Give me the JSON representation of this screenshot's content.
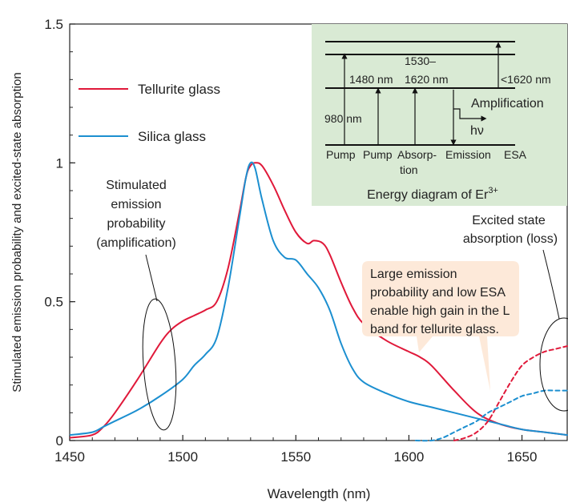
{
  "chart_data": {
    "type": "line",
    "title": "",
    "xlabel": "Wavelength (nm)",
    "ylabel": "Stimulated emission probability and excited-state absorption",
    "xlim": [
      1450,
      1670
    ],
    "ylim": [
      0,
      1.5
    ],
    "xticks": [
      1450,
      1500,
      1550,
      1600,
      1650
    ],
    "yticks": [
      0,
      0.5,
      1,
      1.5
    ],
    "yticklabels": [
      "0",
      "0.5",
      "1",
      "1.5"
    ],
    "grid": false,
    "legend": {
      "placement": "upper-left",
      "entries": [
        {
          "name": "Tellurite glass",
          "color": "#e0193a"
        },
        {
          "name": "Silica glass",
          "color": "#1c8fd0"
        }
      ]
    },
    "series": [
      {
        "name": "Tellurite glass",
        "color": "#e0193a",
        "style": "solid",
        "x": [
          1450,
          1460,
          1465,
          1470,
          1480,
          1490,
          1495,
          1500,
          1505,
          1510,
          1515,
          1520,
          1525,
          1528,
          1530,
          1532,
          1535,
          1540,
          1545,
          1550,
          1555,
          1558,
          1562,
          1565,
          1570,
          1575,
          1580,
          1590,
          1600,
          1605,
          1610,
          1620,
          1630,
          1640,
          1650,
          1660,
          1670
        ],
        "y": [
          0.01,
          0.02,
          0.05,
          0.1,
          0.22,
          0.35,
          0.4,
          0.43,
          0.45,
          0.47,
          0.5,
          0.62,
          0.82,
          0.95,
          0.99,
          1.0,
          0.99,
          0.92,
          0.83,
          0.75,
          0.71,
          0.72,
          0.71,
          0.67,
          0.57,
          0.48,
          0.42,
          0.36,
          0.32,
          0.3,
          0.27,
          0.18,
          0.1,
          0.06,
          0.04,
          0.03,
          0.02
        ]
      },
      {
        "name": "Silica glass",
        "color": "#1c8fd0",
        "style": "solid",
        "x": [
          1450,
          1460,
          1465,
          1470,
          1480,
          1490,
          1500,
          1505,
          1510,
          1515,
          1520,
          1525,
          1528,
          1530,
          1532,
          1535,
          1540,
          1545,
          1550,
          1555,
          1560,
          1565,
          1570,
          1575,
          1580,
          1590,
          1600,
          1610,
          1620,
          1630,
          1640,
          1650,
          1660,
          1670
        ],
        "y": [
          0.02,
          0.03,
          0.05,
          0.07,
          0.11,
          0.16,
          0.22,
          0.27,
          0.31,
          0.37,
          0.55,
          0.8,
          0.95,
          1.0,
          0.98,
          0.87,
          0.72,
          0.66,
          0.65,
          0.6,
          0.55,
          0.47,
          0.35,
          0.26,
          0.21,
          0.17,
          0.14,
          0.12,
          0.1,
          0.08,
          0.06,
          0.04,
          0.03,
          0.02
        ]
      },
      {
        "name": "Tellurite glass ESA",
        "color": "#e0193a",
        "style": "dashed",
        "x": [
          1620,
          1625,
          1630,
          1635,
          1640,
          1645,
          1650,
          1655,
          1660,
          1665,
          1670
        ],
        "y": [
          0.0,
          0.01,
          0.03,
          0.07,
          0.14,
          0.21,
          0.27,
          0.3,
          0.32,
          0.33,
          0.34
        ]
      },
      {
        "name": "Silica glass ESA",
        "color": "#1c8fd0",
        "style": "dashed",
        "x": [
          1603,
          1610,
          1615,
          1620,
          1625,
          1630,
          1635,
          1640,
          1645,
          1650,
          1655,
          1660,
          1665,
          1670
        ],
        "y": [
          0.0,
          0.0,
          0.01,
          0.03,
          0.05,
          0.07,
          0.1,
          0.12,
          0.14,
          0.16,
          0.17,
          0.18,
          0.18,
          0.18
        ]
      }
    ],
    "annotations": {
      "stimulated": [
        "Stimulated",
        "emission",
        "probability",
        "(amplification)"
      ],
      "excited": [
        "Excited state",
        "absorption (loss)"
      ],
      "callout": [
        "Large emission",
        "probability and low ESA",
        "enable high gain in the L",
        "band for tellurite glass."
      ]
    },
    "inset": {
      "caption": "Energy diagram of Er",
      "caption_sup": "3+",
      "labels": {
        "nm980": "980 nm",
        "nm1480": "1480 nm",
        "range1": "1530–",
        "range2": "1620 nm",
        "lt1620": "<1620 nm",
        "amplification": "Amplification",
        "hv": "hν",
        "pump1": "Pump",
        "pump2": "Pump",
        "absorp1": "Absorp-",
        "absorp2": "tion",
        "emission": "Emission",
        "esa": "ESA"
      }
    },
    "colors": {
      "tellurite": "#e0193a",
      "silica": "#1c8fd0",
      "inset_bg": "#d9ead4",
      "callout_bg": "#fde9d9"
    }
  }
}
